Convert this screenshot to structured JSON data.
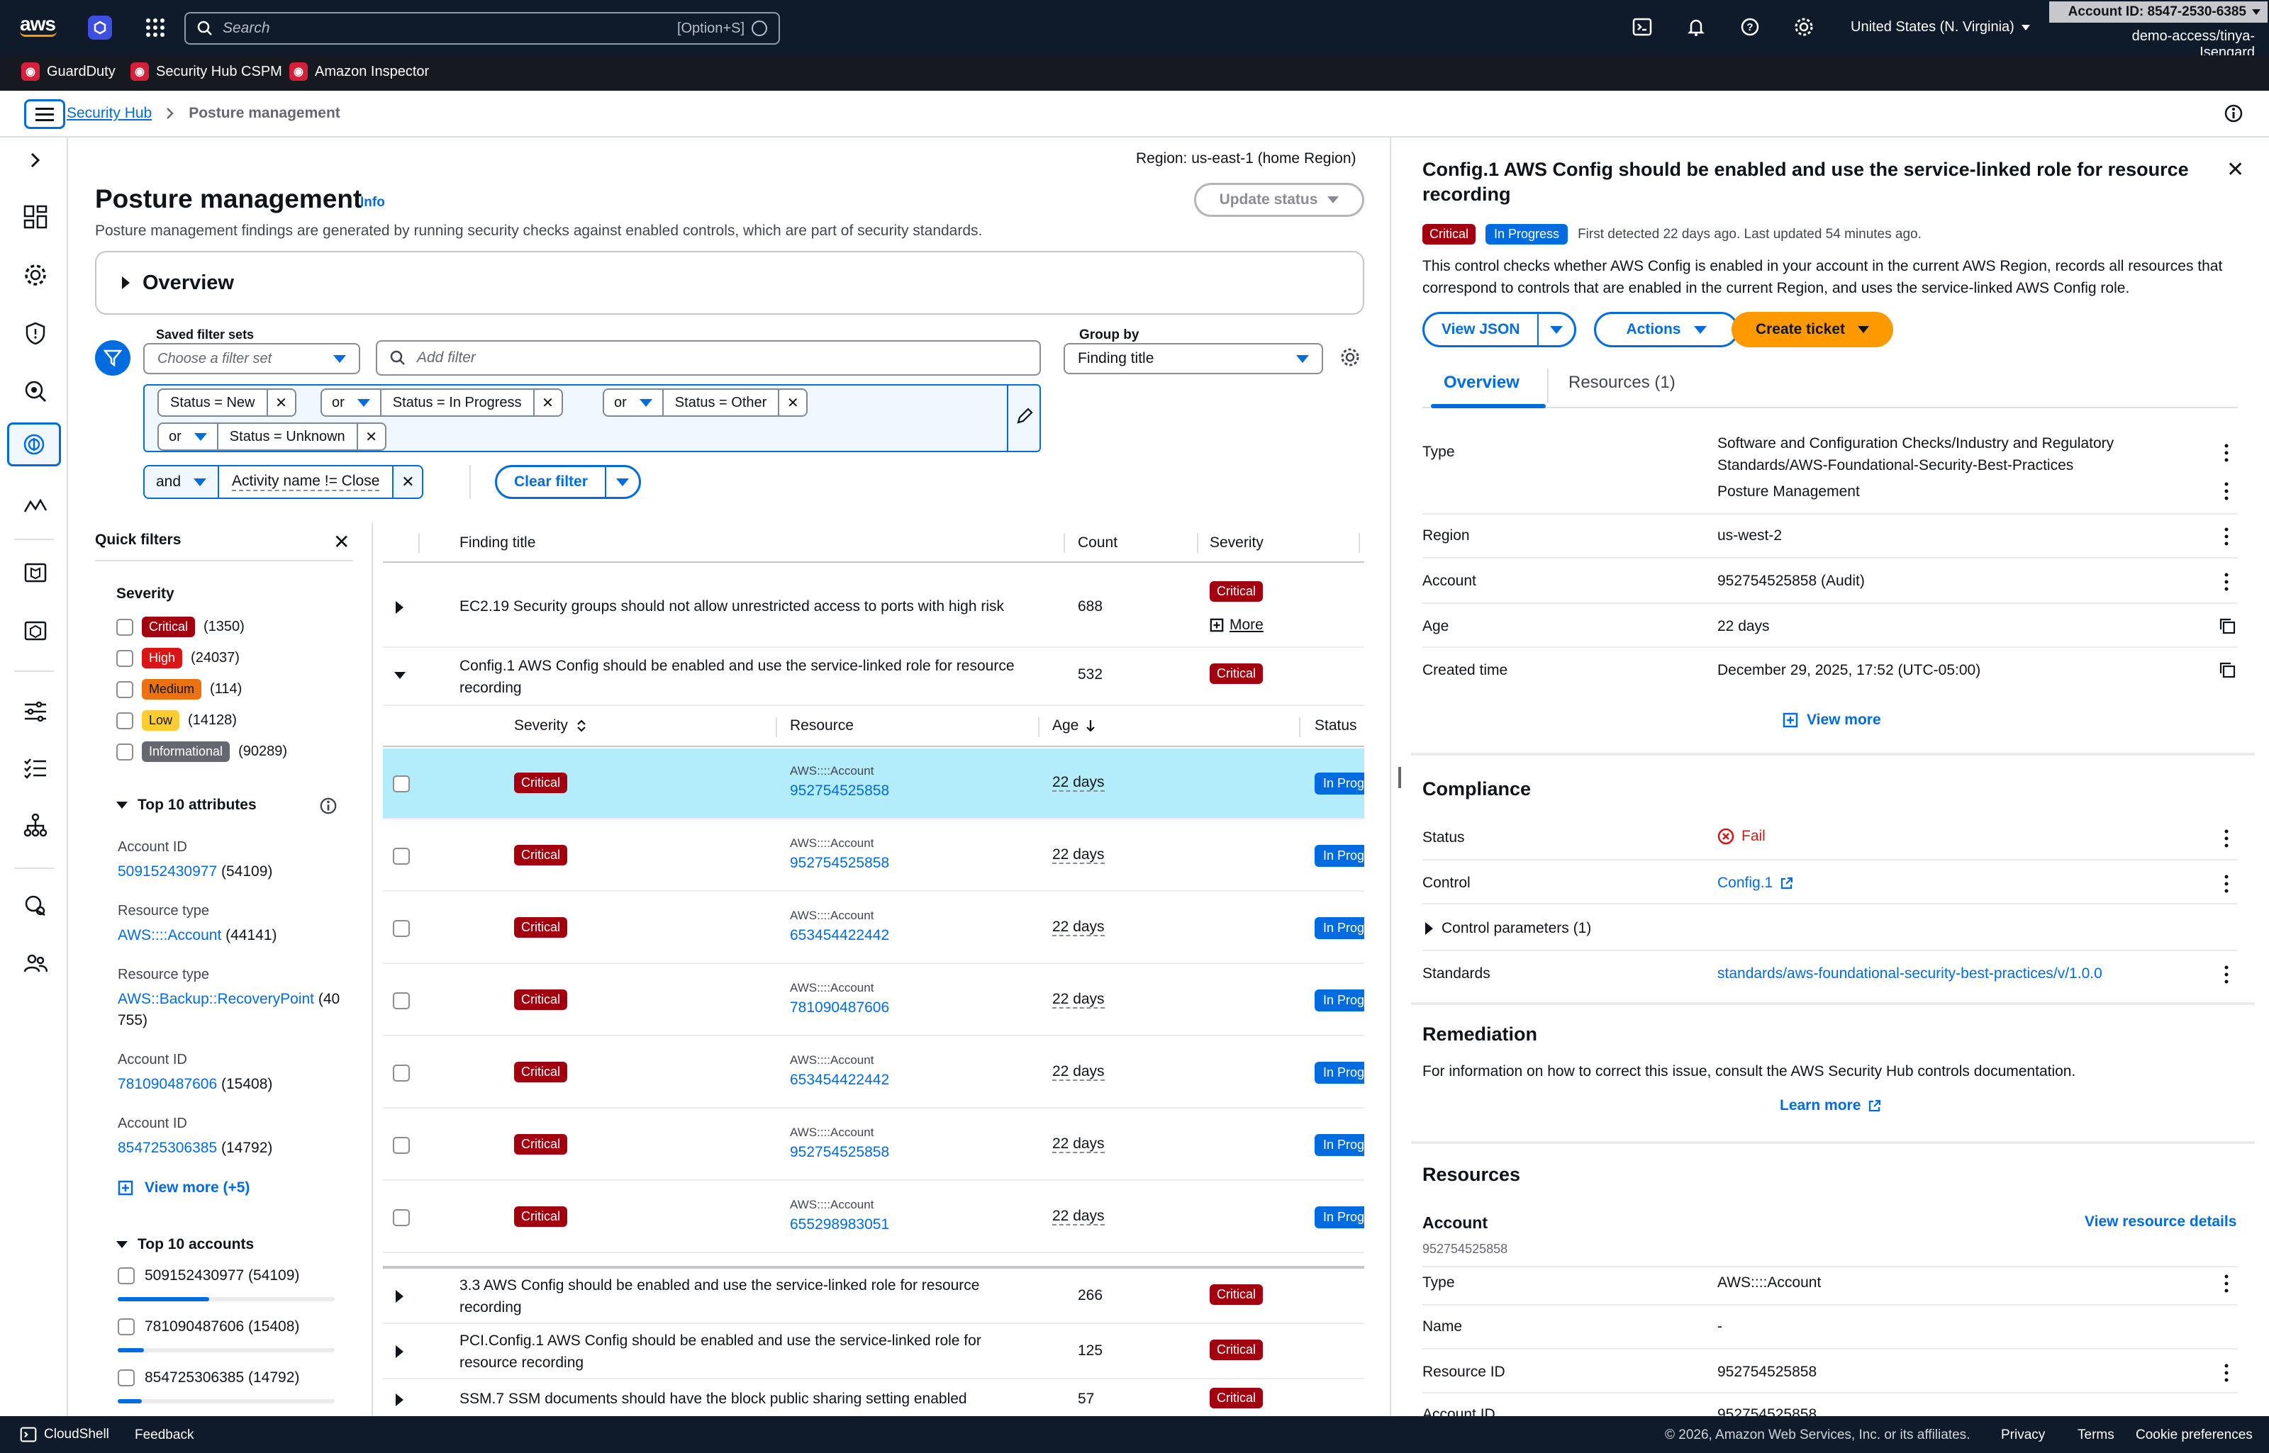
{
  "topnav": {
    "search_placeholder": "Search",
    "search_shortcut": "[Option+S]",
    "region": "United States (N. Virginia)",
    "account_id": "Account ID: 8547-2530-6385",
    "role": "demo-access/tinya-Isengard"
  },
  "favorites": [
    "GuardDuty",
    "Security Hub CSPM",
    "Amazon Inspector"
  ],
  "breadcrumb": {
    "root": "Security Hub",
    "current": "Posture management"
  },
  "page": {
    "region_label": "Region: us-east-1 (home Region)",
    "title": "Posture management",
    "info": "Info",
    "description": "Posture management findings are generated by running security checks against enabled controls, which are part of security standards.",
    "update_status": "Update status",
    "overview": "Overview"
  },
  "filters": {
    "saved_label": "Saved filter sets",
    "saved_placeholder": "Choose a filter set",
    "add_placeholder": "Add filter",
    "group_by_label": "Group by",
    "group_by_value": "Finding title",
    "tokens": [
      {
        "op": "",
        "text": "Status = New"
      },
      {
        "op": "or",
        "text": "Status = In Progress"
      },
      {
        "op": "or",
        "text": "Status = Other"
      },
      {
        "op": "or",
        "text": "Status = Unknown"
      }
    ],
    "and_op": "and",
    "activity_token": "Activity name != Close",
    "clear": "Clear filter"
  },
  "quick_filters": {
    "title": "Quick filters",
    "severity_title": "Severity",
    "severities": [
      {
        "label": "Critical",
        "count": "(1350)"
      },
      {
        "label": "High",
        "count": "(24037)"
      },
      {
        "label": "Medium",
        "count": "(114)"
      },
      {
        "label": "Low",
        "count": "(14128)"
      },
      {
        "label": "Informational",
        "count": "(90289)"
      }
    ],
    "attributes_title": "Top 10 attributes",
    "attributes": [
      {
        "label": "Account ID",
        "value": "509152430977",
        "count": "(54109)"
      },
      {
        "label": "Resource type",
        "value": "AWS::::Account",
        "count": "(44141)"
      },
      {
        "label": "Resource type",
        "value": "AWS::Backup::RecoveryPoint",
        "count": "(40",
        "count2": "755)"
      },
      {
        "label": "Account ID",
        "value": "781090487606",
        "count": "(15408)"
      },
      {
        "label": "Account ID",
        "value": "854725306385",
        "count": "(14792)"
      }
    ],
    "view_more": "View more (+5)",
    "accounts_title": "Top 10 accounts",
    "accounts": [
      {
        "label": "509152430977 (54109)",
        "share": 0.42
      },
      {
        "label": "781090487606 (15408)",
        "share": 0.12
      },
      {
        "label": "854725306385 (14792)",
        "share": 0.11
      }
    ]
  },
  "table": {
    "headers": {
      "title": "Finding title",
      "count": "Count",
      "severity": "Severity"
    },
    "groups_top": [
      {
        "title": "EC2.19 Security groups should not allow unrestricted access to ports with high risk",
        "count": "688",
        "severity": "Critical",
        "more": "More"
      }
    ],
    "expanded": {
      "title1": "Config.1 AWS Config should be enabled and use the service-linked role for resource",
      "title2": "recording",
      "count": "532",
      "severity": "Critical"
    },
    "sub_headers": {
      "severity": "Severity",
      "resource": "Resource",
      "age": "Age",
      "status": "Status"
    },
    "sub_rows": [
      {
        "severity": "Critical",
        "type": "AWS::::Account",
        "id": "952754525858",
        "age": "22 days",
        "status": "In Progress"
      },
      {
        "severity": "Critical",
        "type": "AWS::::Account",
        "id": "952754525858",
        "age": "22 days",
        "status": "In Progress"
      },
      {
        "severity": "Critical",
        "type": "AWS::::Account",
        "id": "653454422442",
        "age": "22 days",
        "status": "In Progress"
      },
      {
        "severity": "Critical",
        "type": "AWS::::Account",
        "id": "781090487606",
        "age": "22 days",
        "status": "In Progress"
      },
      {
        "severity": "Critical",
        "type": "AWS::::Account",
        "id": "653454422442",
        "age": "22 days",
        "status": "In Progress"
      },
      {
        "severity": "Critical",
        "type": "AWS::::Account",
        "id": "952754525858",
        "age": "22 days",
        "status": "In Progress"
      },
      {
        "severity": "Critical",
        "type": "AWS::::Account",
        "id": "655298983051",
        "age": "22 days",
        "status": "In Progress"
      }
    ],
    "groups_bottom": [
      {
        "title1": "3.3 AWS Config should be enabled and use the service-linked role for resource",
        "title2": "recording",
        "count": "266",
        "severity": "Critical"
      },
      {
        "title1": "PCI.Config.1 AWS Config should be enabled and use the service-linked role for",
        "title2": "resource recording",
        "count": "125",
        "severity": "Critical"
      },
      {
        "title1": "SSM.7 SSM documents should have the block public sharing setting enabled",
        "title2": "",
        "count": "57",
        "severity": "Critical"
      }
    ]
  },
  "detail": {
    "title": "Config.1 AWS Config should be enabled and use the service-linked role for resource recording",
    "severity": "Critical",
    "status": "In Progress",
    "detected": "First detected 22 days ago. Last updated 54 minutes ago.",
    "description": "This control checks whether AWS Config is enabled in your account in the current AWS Region, records all resources that correspond to controls that are enabled in the current Region, and uses the service-linked AWS Config role.",
    "buttons": {
      "view_json": "View JSON",
      "actions": "Actions",
      "create_ticket": "Create ticket"
    },
    "tabs": [
      "Overview",
      "Resources (1)"
    ],
    "type_label": "Type",
    "type_value1": "Software and Configuration Checks/Industry and Regulatory Standards/AWS-Foundational-Security-Best-Practices",
    "type_value2": "Posture Management",
    "fields": [
      {
        "label": "Region",
        "value": "us-west-2"
      },
      {
        "label": "Account",
        "value": "952754525858 (Audit)"
      },
      {
        "label": "Age",
        "value": "22 days"
      },
      {
        "label": "Created time",
        "value": "December 29, 2025, 17:52 (UTC-05:00)"
      }
    ],
    "view_more": "View more",
    "compliance": {
      "title": "Compliance",
      "status_label": "Status",
      "status_value": "Fail",
      "control_label": "Control",
      "control_value": "Config.1",
      "params": "Control parameters (1)",
      "standards_label": "Standards",
      "standards_value": "standards/aws-foundational-security-best-practices/v/1.0.0"
    },
    "remediation": {
      "title": "Remediation",
      "text": "For information on how to correct this issue, consult the AWS Security Hub controls documentation.",
      "learn_more": "Learn more"
    },
    "resources": {
      "title": "Resources",
      "account_label": "Account",
      "account_id": "952754525858",
      "view_details": "View resource details",
      "rows": [
        {
          "label": "Type",
          "value": "AWS::::Account"
        },
        {
          "label": "Name",
          "value": "-"
        },
        {
          "label": "Resource ID",
          "value": "952754525858"
        },
        {
          "label": "Account ID",
          "value": "952754525858"
        }
      ]
    }
  },
  "footer": {
    "cloudshell": "CloudShell",
    "feedback": "Feedback",
    "copyright": "© 2026, Amazon Web Services, Inc. or its affiliates.",
    "privacy": "Privacy",
    "terms": "Terms",
    "cookies": "Cookie preferences"
  }
}
